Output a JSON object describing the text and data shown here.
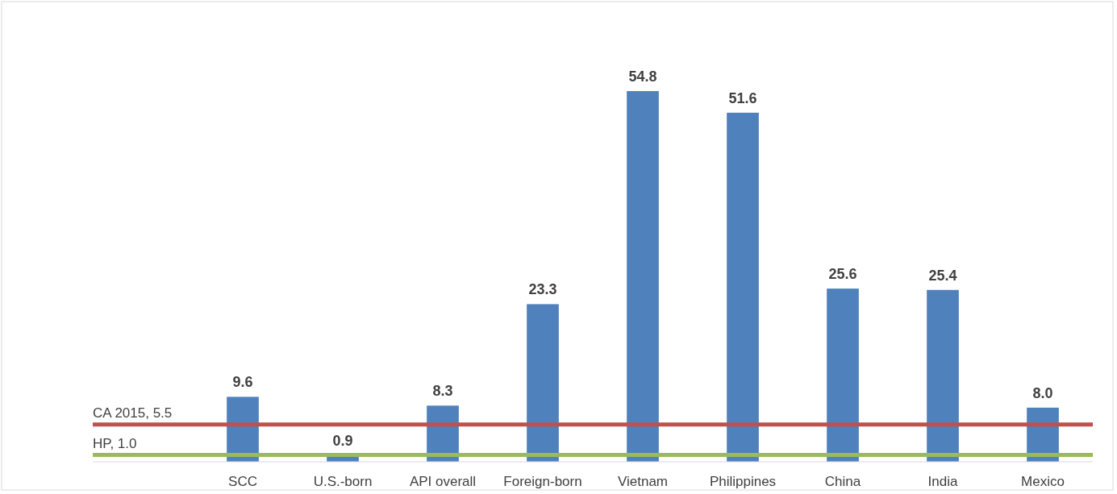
{
  "chart_data": {
    "type": "bar",
    "categories": [
      null,
      "SCC",
      "U.S.-born",
      "API overall",
      "Foreign-born",
      "Vietnam",
      "Philippines",
      "China",
      "India",
      "Mexico"
    ],
    "values": [
      null,
      9.6,
      0.9,
      8.3,
      23.3,
      54.8,
      51.6,
      25.6,
      25.4,
      8.0
    ],
    "color": "#4f81bd",
    "value_labels": [
      null,
      "9.6",
      "0.9",
      "8.3",
      "23.3",
      "54.8",
      "51.6",
      "25.6",
      "25.4",
      "8.0"
    ],
    "tick_labels": "x",
    "ref_lines": [
      {
        "axis": "y",
        "value": 5.5,
        "label": "CA 2015, 5.5",
        "color": "#c0504d"
      },
      {
        "axis": "y",
        "value": 1.0,
        "label": "HP, 1.0",
        "color": "#9bbb59"
      }
    ]
  }
}
